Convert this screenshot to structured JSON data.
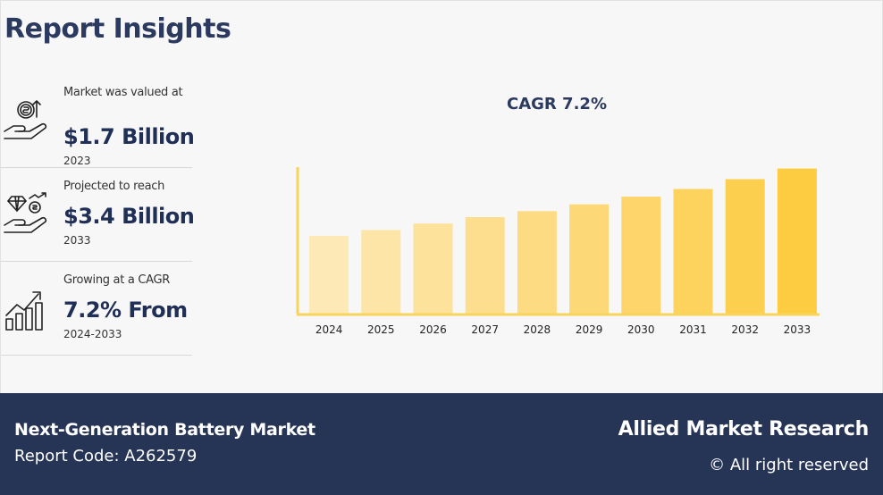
{
  "header": {
    "title": "Report Insights"
  },
  "stats": [
    {
      "icon": "money-hand-icon",
      "label": "Market was valued at",
      "value": "$1.7 Billion",
      "sub": "2023"
    },
    {
      "icon": "diamond-hand-icon",
      "label": "Projected to reach",
      "value": "$3.4 Billion",
      "sub": "2033"
    },
    {
      "icon": "growth-chart-icon",
      "label": "Growing at a CAGR",
      "value": "7.2% From",
      "sub": "2024-2033"
    }
  ],
  "chart_data": {
    "type": "bar",
    "title": "CAGR 7.2%",
    "xlabel": "",
    "ylabel": "",
    "categories": [
      "2024",
      "2025",
      "2026",
      "2027",
      "2028",
      "2029",
      "2030",
      "2031",
      "2032",
      "2033"
    ],
    "values": [
      1.82,
      1.96,
      2.11,
      2.26,
      2.4,
      2.56,
      2.74,
      2.92,
      3.15,
      3.4
    ],
    "ylim": [
      0,
      3.6
    ],
    "grid": false,
    "colors": [
      "#fde9b5",
      "#fde5a8",
      "#fde29c",
      "#fdde8f",
      "#fddb83",
      "#fdd876",
      "#fdd56a",
      "#fdd25d",
      "#fdcf4f",
      "#fdcc40"
    ],
    "axis_color": "#f9d45a"
  },
  "footer": {
    "market": "Next-Generation Battery Market",
    "report_code": "Report Code: A262579",
    "brand": "Allied Market Research",
    "rights": "© All right reserved"
  }
}
